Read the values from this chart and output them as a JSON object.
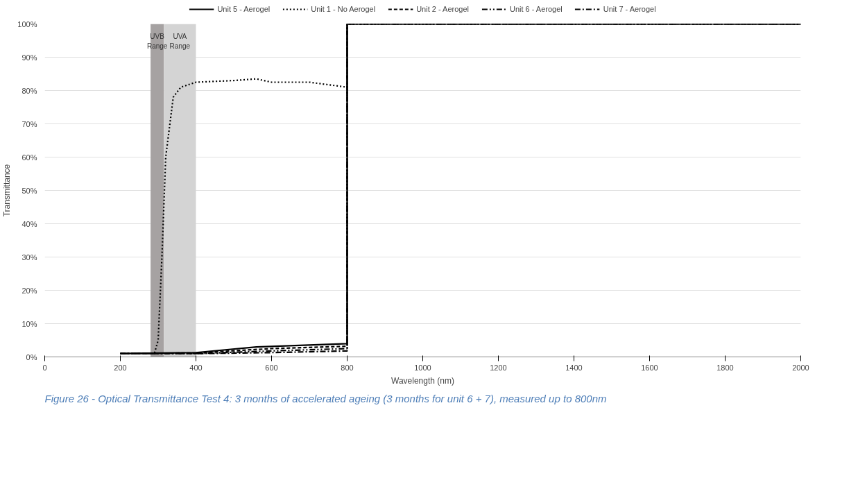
{
  "chart_data": {
    "type": "line",
    "xlabel": "Wavelength (nm)",
    "ylabel": "Transmittance",
    "annotations": [
      "Figure 26 - Optical Transmittance Test 4: 3 months of accelerated ageing (3 months for unit 6 + 7), measured up to 800nm"
    ],
    "xlim": [
      0,
      2000
    ],
    "xticks": [
      0,
      200,
      400,
      600,
      800,
      1000,
      1200,
      1400,
      1600,
      1800,
      2000
    ],
    "ylim": [
      0,
      100
    ],
    "yticks": [
      {
        "value": 0,
        "label": "0%"
      },
      {
        "value": 10,
        "label": "10%"
      },
      {
        "value": 20,
        "label": "20%"
      },
      {
        "value": 30,
        "label": "30%"
      },
      {
        "value": 40,
        "label": "40%"
      },
      {
        "value": 50,
        "label": "50%"
      },
      {
        "value": 60,
        "label": "60%"
      },
      {
        "value": 70,
        "label": "70%"
      },
      {
        "value": 80,
        "label": "80%"
      },
      {
        "value": 90,
        "label": "90%"
      },
      {
        "value": 100,
        "label": "100%"
      }
    ],
    "grid": "y",
    "legend": "top",
    "marker": "none",
    "bands": [
      {
        "axis": "x",
        "from": 280,
        "to": 315,
        "label": "UVB Range",
        "color": "#a6a2a2"
      },
      {
        "axis": "x",
        "from": 315,
        "to": 400,
        "label": "UVA Range",
        "color": "#d4d4d4"
      }
    ],
    "series": [
      {
        "name": "Unit 5 - Aerogel",
        "color": "#000000",
        "line_style": "solid",
        "x": [
          200,
          400,
          560,
          800,
          800,
          2000
        ],
        "values": [
          1,
          1.3,
          3,
          4,
          100,
          100
        ]
      },
      {
        "name": "Unit 1 - No Aerogel",
        "color": "#000000",
        "line_style": "dotted",
        "x": [
          200,
          290,
          300,
          310,
          320,
          340,
          360,
          400,
          500,
          560,
          600,
          700,
          800,
          800,
          2000
        ],
        "values": [
          1,
          1,
          5,
          30,
          60,
          78,
          81,
          82.5,
          83,
          83.5,
          82.5,
          82.5,
          81,
          100,
          100
        ]
      },
      {
        "name": "Unit 2 - Aerogel",
        "color": "#000000",
        "line_style": "dashed",
        "x": [
          200,
          400,
          600,
          800,
          800,
          2000
        ],
        "values": [
          1,
          1.2,
          2.5,
          3.2,
          100,
          100
        ]
      },
      {
        "name": "Unit 6 - Aerogel",
        "color": "#000000",
        "line_style": "dashdotdot",
        "x": [
          200,
          400,
          600,
          800,
          800,
          2000
        ],
        "values": [
          1,
          1,
          1.8,
          2.5,
          100,
          100
        ]
      },
      {
        "name": "Unit 7 - Aerogel",
        "color": "#000000",
        "line_style": "dashdot",
        "x": [
          200,
          400,
          600,
          800,
          800,
          2000
        ],
        "values": [
          1,
          1,
          1.3,
          1.8,
          100,
          100
        ]
      }
    ]
  }
}
